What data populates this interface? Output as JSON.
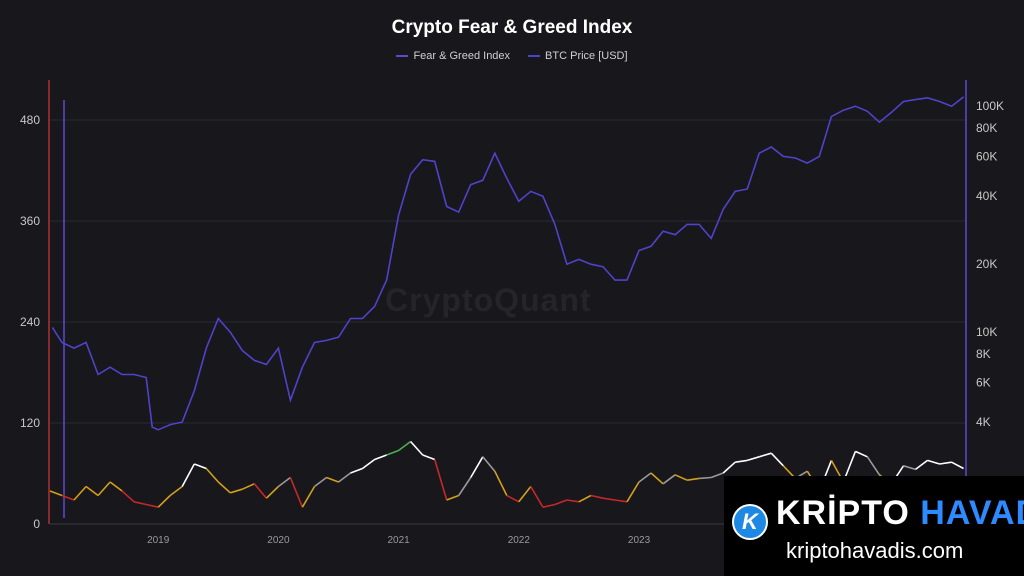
{
  "chart_data": {
    "type": "line",
    "title": "Crypto Fear & Greed Index",
    "legend_position": "top",
    "grid": true,
    "x_ticks": [
      "2019",
      "2020",
      "2021",
      "2022",
      "2023"
    ],
    "y_left": {
      "ticks": [
        0,
        120,
        240,
        360,
        480
      ],
      "range": [
        0,
        480
      ]
    },
    "y_right": {
      "scale": "log",
      "ticks": [
        "4K",
        "6K",
        "8K",
        "10K",
        "20K",
        "40K",
        "60K",
        "80K",
        "100K"
      ],
      "tick_values": [
        4000,
        6000,
        8000,
        10000,
        20000,
        40000,
        60000,
        80000,
        100000
      ],
      "range": [
        3200,
        118000
      ]
    },
    "series": [
      {
        "name": "Fear & Greed Index",
        "axis": "left",
        "color": "#5b4bd1",
        "x": [
          2018.1,
          2018.2,
          2018.3,
          2018.4,
          2018.5,
          2018.6,
          2018.7,
          2018.8,
          2018.9,
          2019.0,
          2019.1,
          2019.2,
          2019.3,
          2019.4,
          2019.5,
          2019.6,
          2019.7,
          2019.8,
          2019.9,
          2020.0,
          2020.1,
          2020.2,
          2020.3,
          2020.4,
          2020.5,
          2020.6,
          2020.7,
          2020.8,
          2020.9,
          2021.0,
          2021.1,
          2021.2,
          2021.3,
          2021.4,
          2021.5,
          2021.6,
          2021.7,
          2021.8,
          2021.9,
          2022.0,
          2022.1,
          2022.2,
          2022.3,
          2022.4,
          2022.5,
          2022.6,
          2022.7,
          2022.8,
          2022.9,
          2023.0,
          2023.1,
          2023.2,
          2023.3,
          2023.4,
          2023.5,
          2023.6,
          2023.7,
          2023.8,
          2023.9,
          2024.0,
          2024.1,
          2024.2,
          2024.3,
          2024.4,
          2024.5,
          2024.6,
          2024.7,
          2024.8,
          2024.9,
          2025.0,
          2025.1,
          2025.2,
          2025.3,
          2025.4,
          2025.5,
          2025.6,
          2025.7
        ],
        "values": [
          45,
          30,
          25,
          40,
          30,
          45,
          35,
          20,
          20,
          15,
          30,
          45,
          60,
          65,
          40,
          30,
          35,
          40,
          25,
          40,
          50,
          15,
          40,
          50,
          45,
          55,
          50,
          70,
          75,
          80,
          90,
          75,
          70,
          25,
          30,
          50,
          70,
          55,
          30,
          25,
          40,
          15,
          20,
          25,
          20,
          30,
          25,
          25,
          20,
          45,
          55,
          40,
          50,
          45,
          45,
          45,
          50,
          65,
          65,
          70,
          75,
          60,
          45,
          55,
          30,
          65,
          40,
          75,
          70,
          50,
          40,
          60,
          55,
          65,
          60,
          65,
          55
        ]
      },
      {
        "name": "BTC Price [USD]",
        "axis": "right",
        "color": "#4f43c9",
        "x": [
          2018.12,
          2018.2,
          2018.3,
          2018.4,
          2018.5,
          2018.6,
          2018.7,
          2018.8,
          2018.9,
          2018.95,
          2019.0,
          2019.1,
          2019.2,
          2019.3,
          2019.4,
          2019.5,
          2019.6,
          2019.7,
          2019.8,
          2019.9,
          2020.0,
          2020.1,
          2020.2,
          2020.3,
          2020.4,
          2020.5,
          2020.6,
          2020.7,
          2020.8,
          2020.9,
          2021.0,
          2021.1,
          2021.2,
          2021.3,
          2021.4,
          2021.5,
          2021.6,
          2021.7,
          2021.8,
          2021.9,
          2022.0,
          2022.1,
          2022.2,
          2022.3,
          2022.4,
          2022.5,
          2022.6,
          2022.7,
          2022.8,
          2022.9,
          2023.0,
          2023.1,
          2023.2,
          2023.3,
          2023.4,
          2023.5,
          2023.6,
          2023.7,
          2023.8,
          2023.9,
          2024.0,
          2024.1,
          2024.2,
          2024.3,
          2024.4,
          2024.5,
          2024.6,
          2024.7,
          2024.8,
          2024.9,
          2025.0,
          2025.1,
          2025.2,
          2025.3,
          2025.4,
          2025.5,
          2025.6,
          2025.7
        ],
        "values": [
          10500,
          9000,
          8500,
          9000,
          6500,
          7000,
          6500,
          6500,
          6300,
          3800,
          3700,
          3900,
          4000,
          5500,
          8500,
          11500,
          10000,
          8300,
          7500,
          7200,
          8500,
          5000,
          7000,
          9000,
          9200,
          9500,
          11500,
          11500,
          13000,
          17000,
          33000,
          50000,
          58000,
          57000,
          36000,
          34000,
          45000,
          47000,
          62000,
          48000,
          38000,
          42000,
          40000,
          30000,
          20000,
          21000,
          20000,
          19500,
          17000,
          17000,
          23000,
          24000,
          28000,
          27000,
          30000,
          30000,
          26000,
          35000,
          42000,
          43000,
          62000,
          66000,
          60000,
          59000,
          56000,
          60000,
          90000,
          96000,
          100000,
          95000,
          85000,
          94000,
          105000,
          107000,
          109000,
          105000,
          100000,
          110000
        ]
      }
    ],
    "fng_zone_colors": {
      "extreme_fear": "#c62828",
      "fear": "#d4a01a",
      "neutral": "#9a9a9a",
      "greed": "#ffffff",
      "extreme_greed": "#4caf50"
    },
    "fng_values": [
      30,
      25,
      20,
      35,
      25,
      40,
      30,
      18,
      15,
      12,
      25,
      35,
      60,
      55,
      40,
      28,
      32,
      38,
      22,
      35,
      45,
      12,
      35,
      45,
      40,
      50,
      55,
      65,
      70,
      75,
      85,
      70,
      65,
      20,
      25,
      45,
      68,
      52,
      25,
      18,
      35,
      12,
      15,
      20,
      18,
      25,
      22,
      20,
      18,
      40,
      50,
      38,
      48,
      42,
      44,
      45,
      50,
      62,
      64,
      68,
      72,
      58,
      44,
      52,
      30,
      64,
      40,
      74,
      68,
      48,
      38,
      58,
      54,
      64,
      60,
      62,
      55
    ]
  },
  "watermark": "CryptoQuant",
  "overlay": {
    "logo_letter": "K",
    "brand_part1": "KRİPTO",
    "brand_part2": "HAVADİS",
    "url": "kriptohavadis.com"
  }
}
